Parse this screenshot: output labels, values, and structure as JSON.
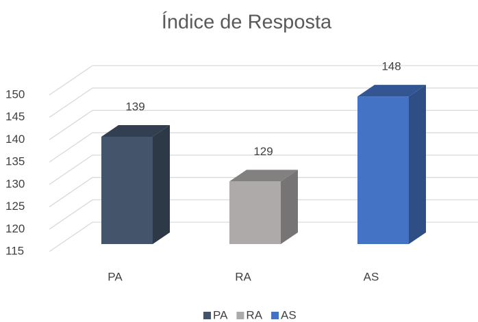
{
  "chart_data": {
    "type": "bar3d",
    "title": "Índice de Resposta",
    "categories": [
      "PA",
      "RA",
      "AS"
    ],
    "values": [
      139,
      129,
      148
    ],
    "colors": [
      "#44546a",
      "#aeaaaa",
      "#4472c4"
    ],
    "ylim": [
      115,
      150
    ],
    "yticks": [
      115,
      120,
      125,
      130,
      135,
      140,
      145,
      150
    ],
    "grid": true,
    "legend": "bottom"
  }
}
